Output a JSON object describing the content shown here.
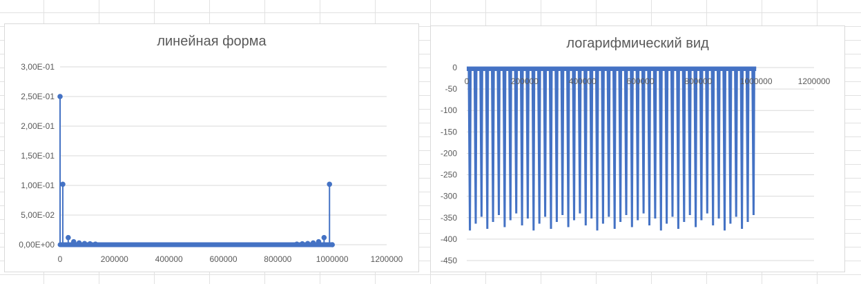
{
  "chart_data": [
    {
      "type": "scatter",
      "title": "линейная форма",
      "xlabel": "",
      "ylabel": "",
      "xlim": [
        0,
        1200000
      ],
      "ylim": [
        0,
        0.3
      ],
      "x_ticks": [
        "0",
        "200000",
        "400000",
        "600000",
        "800000",
        "1000000",
        "1200000"
      ],
      "y_ticks": [
        "0,00E+00",
        "5,00E-02",
        "1,00E-01",
        "1,50E-01",
        "2,00E-01",
        "2,50E-01",
        "3,00E-01"
      ],
      "grid": true,
      "legend": "none",
      "color": "#4472C4",
      "points": [
        {
          "x": 0,
          "y": 0.25
        },
        {
          "x": 10000,
          "y": 0.102
        },
        {
          "x": 30000,
          "y": 0.012
        },
        {
          "x": 50000,
          "y": 0.005
        },
        {
          "x": 70000,
          "y": 0.003
        },
        {
          "x": 90000,
          "y": 0.002
        },
        {
          "x": 110000,
          "y": 0.0015
        },
        {
          "x": 130000,
          "y": 0.001
        },
        {
          "x": 870000,
          "y": 0.001
        },
        {
          "x": 890000,
          "y": 0.0015
        },
        {
          "x": 910000,
          "y": 0.002
        },
        {
          "x": 930000,
          "y": 0.003
        },
        {
          "x": 950000,
          "y": 0.005
        },
        {
          "x": 970000,
          "y": 0.012
        },
        {
          "x": 990000,
          "y": 0.102
        },
        {
          "x": 1000000,
          "y": 0.0
        }
      ]
    },
    {
      "type": "line",
      "title": "логарифмический вид",
      "xlabel": "",
      "ylabel": "",
      "xlim": [
        0,
        1200000
      ],
      "ylim": [
        -450,
        0
      ],
      "x_ticks": [
        "0",
        "200000",
        "400000",
        "600000",
        "800000",
        "1000000",
        "1200000"
      ],
      "y_ticks": [
        "0",
        "-50",
        "-100",
        "-150",
        "-200",
        "-250",
        "-300",
        "-350",
        "-400",
        "-450"
      ],
      "grid": true,
      "legend": "none",
      "color": "#4472C4",
      "x_range": [
        0,
        1000000
      ],
      "description_values": {
        "top": 0,
        "trough_min": -380,
        "trough_max": -340
      }
    }
  ]
}
